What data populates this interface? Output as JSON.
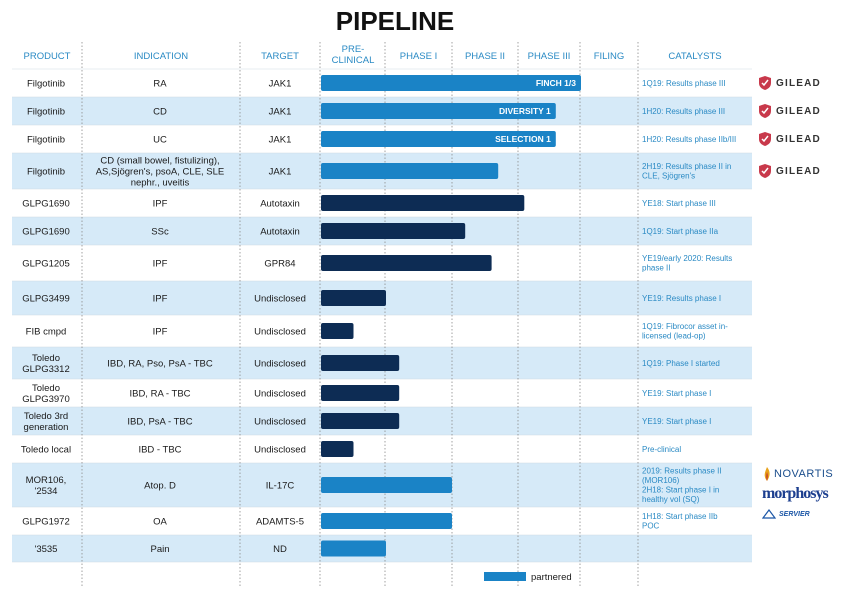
{
  "title": "PIPELINE",
  "headers": {
    "product": "PRODUCT",
    "indication": "INDICATION",
    "target": "TARGET",
    "preclinical": [
      "PRE-",
      "CLINICAL"
    ],
    "phase1": "PHASE I",
    "phase2": "PHASE II",
    "phase3": "PHASE III",
    "filing": "FILING",
    "catalysts": "CATALYSTS"
  },
  "legend": {
    "label": "partnered"
  },
  "colors": {
    "header_text": "#2a8ac4",
    "partnered": "#1a83c6",
    "proprietary": "#0d2c54",
    "band": "#d6eaf8",
    "grid": "#8a8a8a",
    "catalyst_text": "#2a8ac4",
    "gilead_logo": "#c8394b"
  },
  "logos": {
    "gilead": "GILEAD",
    "novartis": "NOVARTIS",
    "morphosys": "morphosys",
    "servier": "SERVIER"
  },
  "chart_data": {
    "type": "bar",
    "orientation": "horizontal",
    "stage_axis": [
      "PRE-CLINICAL",
      "PHASE I",
      "PHASE II",
      "PHASE III",
      "FILING"
    ],
    "value_unit": "development stage (0 = start of pre-clinical, 1 per stage)",
    "series": [
      {
        "name": "partnered"
      }
    ],
    "rows": [
      {
        "product": [
          "Filgotinib"
        ],
        "indication": [
          "RA"
        ],
        "target": [
          "JAK1"
        ],
        "progress": 4.0,
        "partnered": true,
        "bar_label": "FINCH 1/3",
        "catalyst": [
          "1Q19: Results  phase III"
        ],
        "logo": "gilead"
      },
      {
        "product": [
          "Filgotinib"
        ],
        "indication": [
          "CD"
        ],
        "target": [
          "JAK1"
        ],
        "progress": 3.6,
        "partnered": true,
        "bar_label": "DIVERSITY 1",
        "catalyst": [
          "1H20: Results phase III"
        ],
        "logo": "gilead"
      },
      {
        "product": [
          "Filgotinib"
        ],
        "indication": [
          "UC"
        ],
        "target": [
          "JAK1"
        ],
        "progress": 3.6,
        "partnered": true,
        "bar_label": "SELECTION 1",
        "catalyst": [
          "1H20: Results phase IIb/III"
        ],
        "logo": "gilead"
      },
      {
        "product": [
          "Filgotinib"
        ],
        "indication": [
          "CD (small bowel, fistulizing),",
          "AS,Sjögren's, psoA, CLE, SLE",
          "nephr., uveitis"
        ],
        "target": [
          "JAK1"
        ],
        "progress": 2.7,
        "partnered": true,
        "bar_label": "",
        "catalyst": [
          "2H19: Results phase II in",
          "CLE, Sjögren's"
        ],
        "logo": "gilead"
      },
      {
        "product": [
          "GLPG1690"
        ],
        "indication": [
          "IPF"
        ],
        "target": [
          "Autotaxin"
        ],
        "progress": 3.1,
        "partnered": false,
        "bar_label": "",
        "catalyst": [
          "YE18: Start phase III"
        ],
        "logo": ""
      },
      {
        "product": [
          "GLPG1690"
        ],
        "indication": [
          "SSc"
        ],
        "target": [
          "Autotaxin"
        ],
        "progress": 2.2,
        "partnered": false,
        "bar_label": "",
        "catalyst": [
          "1Q19: Start phase IIa"
        ],
        "logo": ""
      },
      {
        "product": [
          "GLPG1205"
        ],
        "indication": [
          "IPF"
        ],
        "target": [
          "GPR84"
        ],
        "progress": 2.6,
        "partnered": false,
        "bar_label": "",
        "catalyst": [
          "YE19/early 2020: Results",
          "phase II"
        ],
        "logo": ""
      },
      {
        "product": [
          "GLPG3499"
        ],
        "indication": [
          "IPF"
        ],
        "target": [
          "Undisclosed"
        ],
        "progress": 1.0,
        "partnered": false,
        "bar_label": "",
        "catalyst": [
          "YE19: Results phase I"
        ],
        "logo": ""
      },
      {
        "product": [
          "FIB cmpd"
        ],
        "indication": [
          "IPF"
        ],
        "target": [
          "Undisclosed"
        ],
        "progress": 0.5,
        "partnered": false,
        "bar_label": "",
        "catalyst": [
          "1Q19: Fibrocor asset in-",
          "licensed (lead-op)"
        ],
        "logo": ""
      },
      {
        "product": [
          "Toledo",
          "GLPG3312"
        ],
        "indication": [
          "IBD, RA, Pso, PsA - TBC"
        ],
        "target": [
          "Undisclosed"
        ],
        "progress": 1.2,
        "partnered": false,
        "bar_label": "",
        "catalyst": [
          "1Q19: Phase I started"
        ],
        "logo": ""
      },
      {
        "product": [
          "Toledo",
          "GLPG3970"
        ],
        "indication": [
          "IBD, RA - TBC"
        ],
        "target": [
          "Undisclosed"
        ],
        "progress": 1.2,
        "partnered": false,
        "bar_label": "",
        "catalyst": [
          "YE19: Start phase I"
        ],
        "logo": ""
      },
      {
        "product": [
          "Toledo 3rd",
          "generation"
        ],
        "indication": [
          "IBD, PsA - TBC"
        ],
        "target": [
          "Undisclosed"
        ],
        "progress": 1.2,
        "partnered": false,
        "bar_label": "",
        "catalyst": [
          "YE19: Start phase I"
        ],
        "logo": ""
      },
      {
        "product": [
          "Toledo local"
        ],
        "indication": [
          "IBD - TBC"
        ],
        "target": [
          "Undisclosed"
        ],
        "progress": 0.5,
        "partnered": false,
        "bar_label": "",
        "catalyst": [
          "Pre-clinical"
        ],
        "logo": ""
      },
      {
        "product": [
          "MOR106,",
          "'2534"
        ],
        "indication": [
          "Atop. D"
        ],
        "target": [
          "IL-17C"
        ],
        "progress": 2.0,
        "partnered": true,
        "bar_label": "",
        "catalyst": [
          "2019: Results  phase II",
          "(MOR106)",
          "2H18: Start phase I in",
          "healthy vol (SQ)"
        ],
        "logo": "partners"
      },
      {
        "product": [
          "GLPG1972"
        ],
        "indication": [
          "OA"
        ],
        "target": [
          "ADAMTS-5"
        ],
        "progress": 2.0,
        "partnered": true,
        "bar_label": "",
        "catalyst": [
          "1H18: Start phase IIb",
          "POC"
        ],
        "logo": "partners"
      },
      {
        "product": [
          "'3535"
        ],
        "indication": [
          "Pain"
        ],
        "target": [
          "ND"
        ],
        "progress": 1.0,
        "partnered": true,
        "bar_label": "",
        "catalyst": [],
        "logo": "partners"
      }
    ]
  }
}
